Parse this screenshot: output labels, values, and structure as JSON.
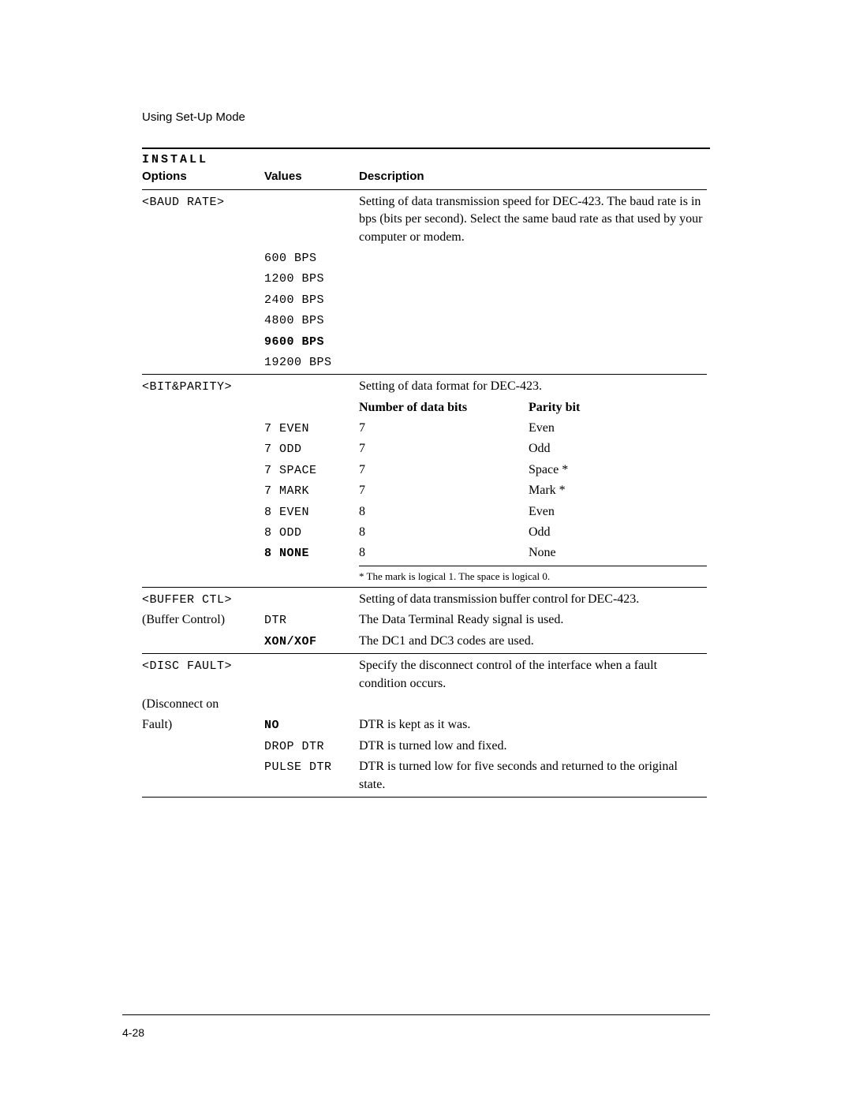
{
  "header": "Using Set-Up Mode",
  "columns": {
    "options_line1": "INSTALL",
    "options_line2": "Options",
    "values": "Values",
    "description": "Description"
  },
  "baudrate": {
    "option": "<BAUD RATE>",
    "desc": "Setting of data transmission speed for DEC-423.  The baud rate is in bps (bits per second).  Select the same baud rate as that used by your computer or modem.",
    "values": [
      "600  BPS",
      "1200 BPS",
      "2400 BPS",
      "4800 BPS",
      "9600 BPS",
      "19200 BPS"
    ],
    "default_index": 4
  },
  "bitparity": {
    "option": "<BIT&PARITY>",
    "desc": "Setting of data format for DEC-423.",
    "sub_col1": "Number of data bits",
    "sub_col2": "Parity bit",
    "rows": [
      {
        "v": "7 EVEN",
        "bits": "7",
        "parity": "Even"
      },
      {
        "v": "7 ODD",
        "bits": "7",
        "parity": "Odd"
      },
      {
        "v": "7 SPACE",
        "bits": "7",
        "parity": "Space *"
      },
      {
        "v": "7 MARK",
        "bits": "7",
        "parity": "Mark *"
      },
      {
        "v": "8 EVEN",
        "bits": "8",
        "parity": "Even"
      },
      {
        "v": "8 ODD",
        "bits": "8",
        "parity": "Odd"
      },
      {
        "v": "8 NONE",
        "bits": "8",
        "parity": "None"
      }
    ],
    "default_index": 6,
    "footnote": "* The mark is logical 1.  The space is logical 0."
  },
  "bufferctl": {
    "option": "<BUFFER CTL>",
    "sub": "(Buffer Control)",
    "desc": "Setting of data transmission buffer control for DEC-423.",
    "rows": [
      {
        "v": "DTR",
        "d": "The Data Terminal Ready signal is used."
      },
      {
        "v": "XON/XOF",
        "d": "The DC1 and DC3 codes are used."
      }
    ],
    "default_index": 1
  },
  "discfault": {
    "option": "<DISC FAULT>",
    "sub1": "(Disconnect on",
    "sub2": "Fault)",
    "desc": "Specify the disconnect control of the interface when a fault condition occurs.",
    "rows": [
      {
        "v": "NO",
        "d": "DTR is kept as it was."
      },
      {
        "v": "DROP DTR",
        "d": "DTR is turned low and fixed."
      },
      {
        "v": "PULSE DTR",
        "d": "DTR is turned low for five seconds and returned to the original state."
      }
    ],
    "default_index": 0
  },
  "page_number": "4-28"
}
